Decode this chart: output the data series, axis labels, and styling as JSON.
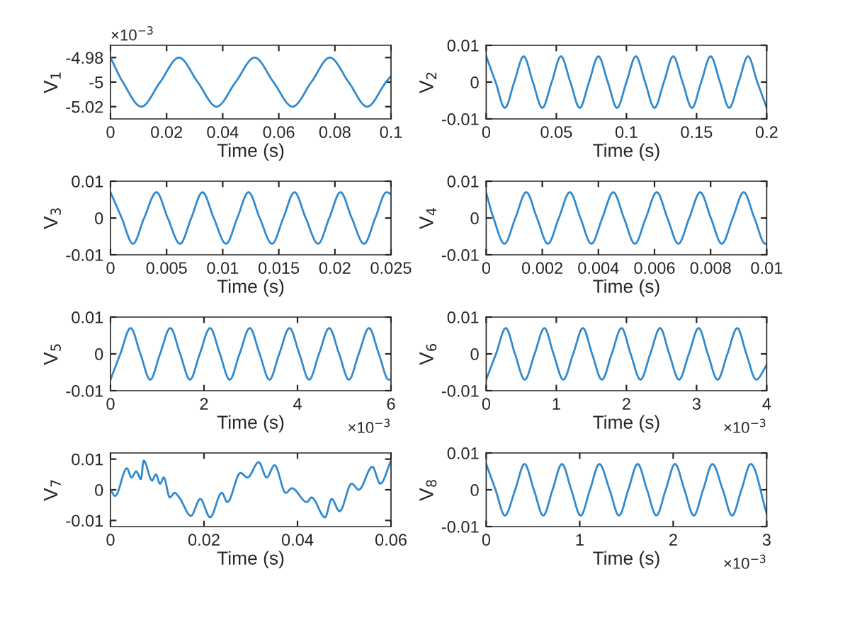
{
  "chart_data": [
    {
      "type": "line",
      "xlabel": "Time (s)",
      "ylabel": "V$_{1}$",
      "xlim": [
        0,
        0.1
      ],
      "ylim": [
        -5.03,
        -4.97
      ],
      "xticks": [
        0,
        0.02,
        0.04,
        0.06,
        0.08,
        0.1
      ],
      "yticks": [
        -5.02,
        -5,
        -4.98
      ],
      "annotations": [
        "×10$^{−3}$"
      ],
      "series": [
        {
          "color": "#2f8ad0",
          "x": [
            0,
            0.0044,
            0.011,
            0.0177,
            0.0244,
            0.0311,
            0.0378,
            0.0446,
            0.0514,
            0.0581,
            0.0649,
            0.0716,
            0.0782,
            0.0849,
            0.0915,
            0.0982,
            0.1
          ],
          "values": [
            -4.98,
            -5,
            -5.02,
            -5,
            -4.98,
            -5,
            -5.02,
            -5,
            -4.98,
            -5,
            -5.02,
            -5,
            -4.98,
            -5,
            -5.02,
            -5,
            -4.995
          ]
        }
      ]
    },
    {
      "type": "line",
      "xlabel": "Time (s)",
      "ylabel": "V$_{2}$",
      "xlim": [
        0,
        0.2
      ],
      "ylim": [
        -0.01,
        0.01
      ],
      "xticks": [
        0,
        0.05,
        0.1,
        0.15,
        0.2
      ],
      "yticks": [
        -0.01,
        0,
        0.01
      ],
      "series": [
        {
          "color": "#2f8ad0",
          "x": [
            0,
            0.0067,
            0.0133,
            0.02,
            0.0267,
            0.0333,
            0.04,
            0.0467,
            0.0533,
            0.06,
            0.0667,
            0.0733,
            0.08,
            0.0867,
            0.0933,
            0.1,
            0.1067,
            0.1133,
            0.12,
            0.1267,
            0.1333,
            0.14,
            0.1467,
            0.1533,
            0.16,
            0.1667,
            0.1733,
            0.18,
            0.1867,
            0.1933,
            0.2
          ],
          "values": [
            0.007,
            0,
            -0.007,
            0,
            0.007,
            0,
            -0.007,
            0,
            0.007,
            0,
            -0.007,
            0,
            0.007,
            0,
            -0.007,
            0,
            0.007,
            0,
            -0.007,
            0,
            0.007,
            0,
            -0.007,
            0,
            0.007,
            0,
            -0.007,
            0,
            0.007,
            0,
            -0.007
          ]
        }
      ]
    },
    {
      "type": "line",
      "xlabel": "Time (s)",
      "ylabel": "V$_{3}$",
      "xlim": [
        0,
        0.025
      ],
      "ylim": [
        -0.01,
        0.01
      ],
      "xticks": [
        0,
        0.005,
        0.01,
        0.015,
        0.02,
        0.025
      ],
      "yticks": [
        -0.01,
        0,
        0.01
      ],
      "series": [
        {
          "color": "#2f8ad0",
          "x": [
            0,
            0.001,
            0.002,
            0.003,
            0.0041,
            0.0051,
            0.0062,
            0.0072,
            0.0082,
            0.0092,
            0.0103,
            0.0113,
            0.0123,
            0.0133,
            0.0144,
            0.0154,
            0.0164,
            0.0174,
            0.0185,
            0.0195,
            0.0205,
            0.0215,
            0.0226,
            0.0236,
            0.0246,
            0.025
          ],
          "values": [
            0.007,
            0,
            -0.007,
            0,
            0.007,
            0,
            -0.007,
            0,
            0.007,
            0,
            -0.007,
            0,
            0.007,
            0,
            -0.007,
            0,
            0.007,
            0,
            -0.007,
            0,
            0.007,
            0,
            -0.007,
            0,
            0.007,
            0.0065
          ]
        }
      ]
    },
    {
      "type": "line",
      "xlabel": "Time (s)",
      "ylabel": "V$_{4}$",
      "xlim": [
        0,
        0.01
      ],
      "ylim": [
        -0.01,
        0.01
      ],
      "xticks": [
        0,
        0.002,
        0.004,
        0.006,
        0.008,
        0.01
      ],
      "yticks": [
        -0.01,
        0,
        0.01
      ],
      "series": [
        {
          "color": "#2f8ad0",
          "x": [
            0,
            0.00026,
            0.00065,
            0.00104,
            0.00143,
            0.00181,
            0.0022,
            0.00259,
            0.00298,
            0.00336,
            0.00375,
            0.00414,
            0.00453,
            0.00491,
            0.0053,
            0.00569,
            0.00608,
            0.00646,
            0.00685,
            0.00724,
            0.00763,
            0.00801,
            0.0084,
            0.00879,
            0.00918,
            0.00956,
            0.00995,
            0.01
          ],
          "values": [
            0.0068,
            0,
            -0.007,
            0,
            0.007,
            0,
            -0.007,
            0,
            0.007,
            0,
            -0.007,
            0,
            0.007,
            0,
            -0.007,
            0,
            0.007,
            0,
            -0.007,
            0,
            0.007,
            0,
            -0.007,
            0,
            0.007,
            0,
            -0.007,
            -0.007
          ]
        }
      ]
    },
    {
      "type": "line",
      "xlabel": "Time (s)",
      "ylabel": "V$_{5}$",
      "xlim": [
        0,
        6
      ],
      "ylim": [
        -0.01,
        0.01
      ],
      "xticks": [
        0,
        2,
        4,
        6
      ],
      "yticks": [
        -0.01,
        0,
        0.01
      ],
      "annotations": [
        "×10$^{−3}$"
      ],
      "series": [
        {
          "color": "#2f8ad0",
          "x": [
            0,
            0.21,
            0.43,
            0.64,
            0.85,
            1.06,
            1.28,
            1.49,
            1.7,
            1.91,
            2.13,
            2.34,
            2.55,
            2.76,
            2.98,
            3.19,
            3.4,
            3.61,
            3.83,
            4.04,
            4.25,
            4.46,
            4.68,
            4.89,
            5.1,
            5.31,
            5.53,
            5.74,
            5.95,
            6
          ],
          "values": [
            -0.007,
            0,
            0.007,
            0,
            -0.007,
            0,
            0.007,
            0,
            -0.007,
            0,
            0.007,
            0,
            -0.007,
            0,
            0.007,
            0,
            -0.007,
            0,
            0.007,
            0,
            -0.007,
            0,
            0.007,
            0,
            -0.007,
            0,
            0.007,
            0,
            -0.007,
            -0.0069
          ]
        }
      ]
    },
    {
      "type": "line",
      "xlabel": "Time (s)",
      "ylabel": "V$_{6}$",
      "xlim": [
        0,
        4
      ],
      "ylim": [
        -0.01,
        0.01
      ],
      "xticks": [
        0,
        1,
        2,
        3,
        4
      ],
      "yticks": [
        -0.01,
        0,
        0.01
      ],
      "annotations": [
        "×10$^{−3}$"
      ],
      "series": [
        {
          "color": "#2f8ad0",
          "x": [
            0,
            0.14,
            0.28,
            0.41,
            0.55,
            0.69,
            0.83,
            0.96,
            1.1,
            1.24,
            1.38,
            1.51,
            1.65,
            1.79,
            1.93,
            2.06,
            2.2,
            2.34,
            2.48,
            2.61,
            2.75,
            2.89,
            3.03,
            3.16,
            3.3,
            3.44,
            3.58,
            3.71,
            3.85,
            4
          ],
          "values": [
            -0.007,
            0,
            0.007,
            0,
            -0.007,
            0,
            0.007,
            0,
            -0.007,
            0,
            0.007,
            0,
            -0.007,
            0,
            0.007,
            0,
            -0.007,
            0,
            0.007,
            0,
            -0.007,
            0,
            0.007,
            0,
            -0.007,
            0,
            0.007,
            0,
            -0.007,
            -0.003
          ]
        }
      ]
    },
    {
      "type": "line",
      "xlabel": "Time (s)",
      "ylabel": "V$_{7}$",
      "xlim": [
        0,
        0.06
      ],
      "ylim": [
        -0.012,
        0.012
      ],
      "xticks": [
        0,
        0.02,
        0.04,
        0.06
      ],
      "yticks": [
        -0.01,
        0,
        0.01
      ],
      "series": [
        {
          "color": "#2f8ad0",
          "x": [
            0,
            0.001,
            0.0035,
            0.0045,
            0.0055,
            0.0065,
            0.0071,
            0.0089,
            0.0097,
            0.0106,
            0.0114,
            0.0127,
            0.0137,
            0.0147,
            0.0172,
            0.0192,
            0.0213,
            0.0238,
            0.025,
            0.0278,
            0.0293,
            0.0317,
            0.0334,
            0.0351,
            0.0375,
            0.0388,
            0.042,
            0.043,
            0.0459,
            0.0473,
            0.049,
            0.0516,
            0.0531,
            0.056,
            0.0577,
            0.06
          ],
          "values": [
            0,
            -0.002,
            0.007,
            0.004,
            0.006,
            0.0035,
            0.0095,
            0.003,
            0.005,
            0.002,
            0.004,
            -0.0025,
            -0.001,
            -0.0025,
            -0.0085,
            -0.003,
            -0.009,
            -0.001,
            -0.004,
            0.0055,
            0.004,
            0.009,
            0.004,
            0.008,
            -0.001,
            0.0005,
            -0.004,
            -0.0025,
            -0.009,
            -0.003,
            -0.007,
            0.002,
            0,
            0.0075,
            0.002,
            0.0095
          ]
        }
      ]
    },
    {
      "type": "line",
      "xlabel": "Time (s)",
      "ylabel": "V$_{8}$",
      "xlim": [
        0,
        3
      ],
      "ylim": [
        -0.01,
        0.01
      ],
      "xticks": [
        0,
        1,
        2,
        3
      ],
      "yticks": [
        -0.01,
        0,
        0.01
      ],
      "annotations": [
        "×10$^{−3}$"
      ],
      "series": [
        {
          "color": "#2f8ad0",
          "x": [
            0,
            0.1,
            0.2,
            0.31,
            0.41,
            0.51,
            0.61,
            0.71,
            0.81,
            0.91,
            1.01,
            1.11,
            1.21,
            1.32,
            1.42,
            1.52,
            1.62,
            1.72,
            1.82,
            1.92,
            2.02,
            2.12,
            2.22,
            2.32,
            2.42,
            2.53,
            2.63,
            2.73,
            2.83,
            3
          ],
          "values": [
            0.007,
            0,
            -0.007,
            0,
            0.007,
            0,
            -0.007,
            0,
            0.007,
            0,
            -0.007,
            0,
            0.007,
            0,
            -0.007,
            0,
            0.007,
            0,
            -0.007,
            0,
            0.007,
            0,
            -0.007,
            0,
            0.007,
            0,
            -0.007,
            0,
            0.007,
            -0.0065
          ]
        }
      ]
    }
  ]
}
